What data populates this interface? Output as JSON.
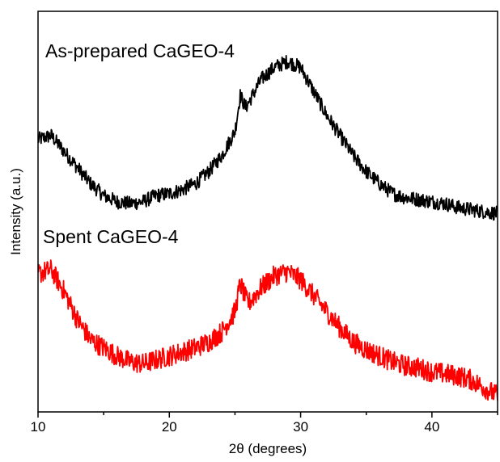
{
  "chart_data": {
    "type": "line",
    "title": "",
    "xlabel": "2θ (degrees)",
    "ylabel": "Intensity (a.u.)",
    "xlim": [
      10,
      45
    ],
    "x_ticks": [
      10,
      20,
      30,
      40
    ],
    "ylim": [
      0,
      1
    ],
    "y_ticks_shown": false,
    "grid": false,
    "legend": "none",
    "series": [
      {
        "name": "As-prepared CaGEO-4",
        "color": "#000000",
        "x": [
          10,
          11,
          12,
          13,
          14,
          15,
          16,
          17,
          18,
          19,
          20,
          21,
          22,
          23,
          24,
          25,
          25.4,
          25.8,
          26,
          27,
          28,
          29,
          30,
          31,
          32,
          33,
          34,
          35,
          36,
          37,
          38,
          39,
          40,
          41,
          42,
          43,
          44,
          45
        ],
        "values": [
          0.68,
          0.69,
          0.65,
          0.61,
          0.57,
          0.54,
          0.525,
          0.52,
          0.525,
          0.54,
          0.545,
          0.555,
          0.57,
          0.6,
          0.64,
          0.7,
          0.79,
          0.76,
          0.77,
          0.83,
          0.86,
          0.875,
          0.86,
          0.8,
          0.74,
          0.69,
          0.64,
          0.6,
          0.57,
          0.545,
          0.535,
          0.53,
          0.525,
          0.52,
          0.51,
          0.505,
          0.5,
          0.495
        ]
      },
      {
        "name": "Spent CaGEO-4",
        "color": "#ff0000",
        "x": [
          10,
          11,
          12,
          13,
          14,
          15,
          16,
          17,
          18,
          19,
          20,
          21,
          22,
          23,
          24,
          25,
          25.4,
          25.8,
          26,
          27,
          28,
          29,
          30,
          31,
          32,
          33,
          34,
          35,
          36,
          37,
          38,
          39,
          40,
          41,
          42,
          43,
          44,
          45
        ],
        "values": [
          0.345,
          0.355,
          0.3,
          0.23,
          0.18,
          0.16,
          0.14,
          0.125,
          0.12,
          0.13,
          0.14,
          0.15,
          0.16,
          0.175,
          0.2,
          0.25,
          0.32,
          0.285,
          0.27,
          0.31,
          0.34,
          0.35,
          0.33,
          0.29,
          0.25,
          0.21,
          0.175,
          0.155,
          0.14,
          0.125,
          0.115,
          0.11,
          0.1,
          0.095,
          0.09,
          0.08,
          0.06,
          0.04
        ]
      }
    ],
    "annotations": [
      "As-prepared CaGEO-4",
      "Spent CaGEO-4"
    ]
  }
}
